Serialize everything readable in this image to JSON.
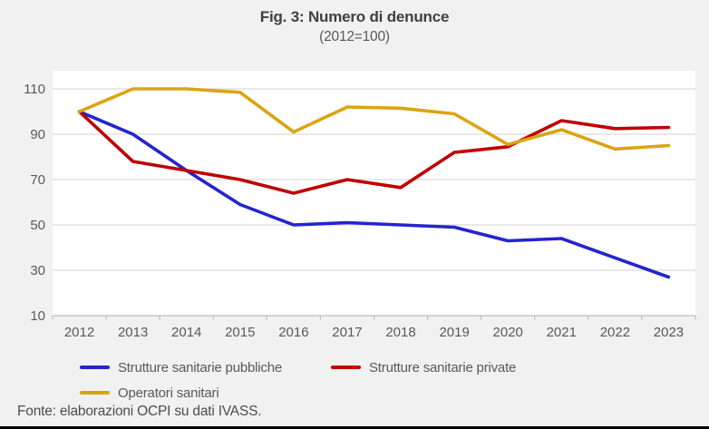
{
  "figure": {
    "title": "Fig. 3: Numero di denunce",
    "subtitle": "(2012=100)",
    "source_note": "Fonte: elaborazioni OCPI su dati IVASS."
  },
  "chart_data": {
    "type": "line",
    "title": "Fig. 3: Numero di denunce",
    "subtitle": "(2012=100)",
    "categories": [
      "2012",
      "2013",
      "2014",
      "2015",
      "2016",
      "2017",
      "2018",
      "2019",
      "2020",
      "2021",
      "2022",
      "2023"
    ],
    "series": [
      {
        "name": "Strutture sanitarie pubbliche",
        "color": "#2424CE",
        "values": [
          100,
          90,
          74,
          59,
          50,
          51,
          50,
          49,
          43,
          44,
          35.5,
          27
        ]
      },
      {
        "name": "Strutture sanitarie private",
        "color": "#C00000",
        "values": [
          100,
          78,
          74,
          70,
          64,
          70,
          66.5,
          82,
          84.5,
          96,
          92.5,
          93
        ]
      },
      {
        "name": "Operatori sanitari",
        "color": "#D9A511",
        "values": [
          100,
          110,
          110,
          108.5,
          91,
          102,
          101.5,
          99,
          85.5,
          92,
          83.5,
          85
        ]
      }
    ],
    "xlabel": "",
    "ylabel": "",
    "ylim": [
      10,
      110
    ],
    "yticks": [
      10,
      30,
      50,
      70,
      90,
      110
    ],
    "grid": true,
    "legend_position": "bottom-left"
  },
  "theme": {
    "page_background": "#F1F1F1",
    "plot_background": "#FFFFFF",
    "gridline_color": "#D9D9D9",
    "axis_color": "#BFBFBF",
    "label_color": "#595959",
    "title_color": "#404040",
    "border_bottom_color": "#000000"
  }
}
